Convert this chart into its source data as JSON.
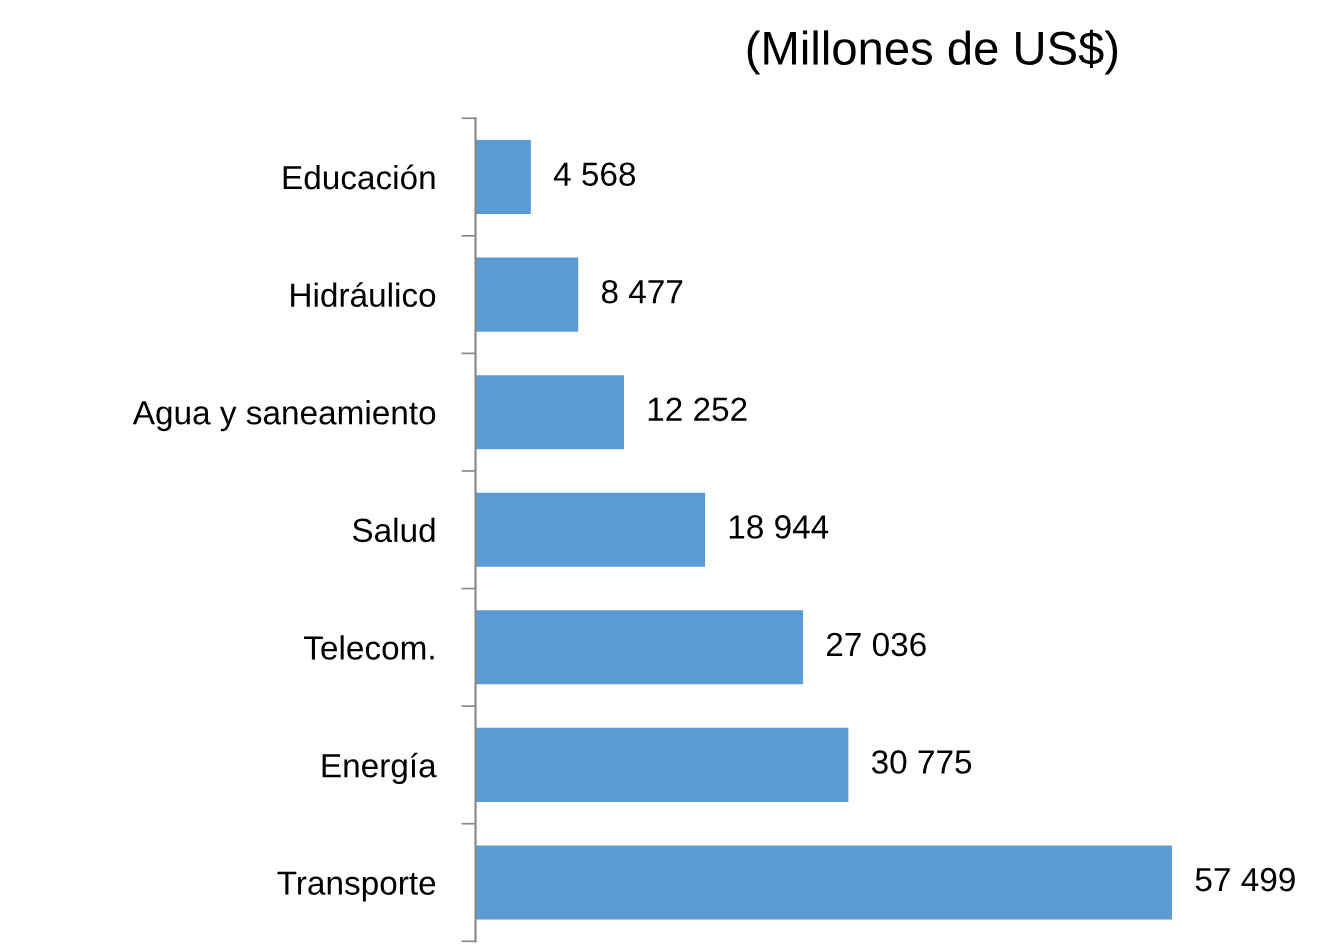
{
  "chart_data": {
    "type": "bar",
    "orientation": "horizontal",
    "title": "(Millones de US$)",
    "categories": [
      "Educación",
      "Hidráulico",
      "Agua y saneamiento",
      "Salud",
      "Telecom.",
      "Energía",
      "Transporte"
    ],
    "values": [
      4568,
      8477,
      12252,
      18944,
      27036,
      30775,
      57499
    ],
    "value_labels": [
      "4 568",
      "8 477",
      "12 252",
      "18 944",
      "27 036",
      "30 775",
      "57 499"
    ],
    "color": "#5b9bd5",
    "grid": false,
    "legend": false
  }
}
